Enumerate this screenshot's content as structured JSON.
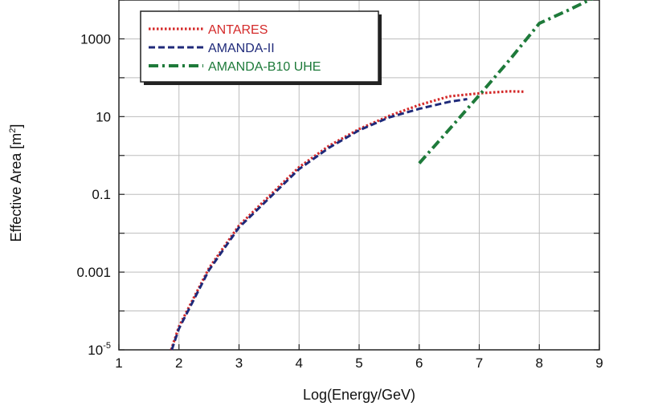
{
  "chart_data": {
    "type": "line",
    "xlabel": "Log(Energy/GeV)",
    "ylabel": "Effective Area [m",
    "ylabel_superscript": "2",
    "ylabel_close": "]",
    "xlim": [
      1,
      9
    ],
    "ylim_log10": [
      -5,
      4
    ],
    "y_scale": "log",
    "x_ticks": [
      {
        "value": 1,
        "label": "1"
      },
      {
        "value": 2,
        "label": "2"
      },
      {
        "value": 3,
        "label": "3"
      },
      {
        "value": 4,
        "label": "4"
      },
      {
        "value": 5,
        "label": "5"
      },
      {
        "value": 6,
        "label": "6"
      },
      {
        "value": 7,
        "label": "7"
      },
      {
        "value": 8,
        "label": "8"
      },
      {
        "value": 9,
        "label": "9"
      }
    ],
    "y_ticks": [
      {
        "log10": -5,
        "label": "10",
        "sup": "-5"
      },
      {
        "log10": -3,
        "label": "0.001",
        "sup": ""
      },
      {
        "log10": -1,
        "label": "0.1",
        "sup": ""
      },
      {
        "log10": 1,
        "label": "10",
        "sup": ""
      },
      {
        "log10": 3,
        "label": "1000",
        "sup": ""
      }
    ],
    "grid": true,
    "legend_position": "top-left",
    "series": [
      {
        "name": "ANTARES",
        "color": "#d42a2a",
        "dash": "dotted",
        "points": [
          [
            1.87,
            -5.0
          ],
          [
            2.0,
            -4.4
          ],
          [
            2.5,
            -2.9
          ],
          [
            3.0,
            -1.8
          ],
          [
            3.5,
            -1.05
          ],
          [
            4.0,
            -0.3
          ],
          [
            4.5,
            0.25
          ],
          [
            5.0,
            0.68
          ],
          [
            5.5,
            1.02
          ],
          [
            6.0,
            1.3
          ],
          [
            6.5,
            1.52
          ],
          [
            7.0,
            1.6
          ],
          [
            7.5,
            1.65
          ],
          [
            7.75,
            1.64
          ]
        ]
      },
      {
        "name": "AMANDA-II",
        "color": "#1f2a7a",
        "dash": "dashed",
        "points": [
          [
            1.88,
            -5.0
          ],
          [
            2.0,
            -4.45
          ],
          [
            2.5,
            -2.95
          ],
          [
            3.0,
            -1.85
          ],
          [
            3.5,
            -1.1
          ],
          [
            4.0,
            -0.35
          ],
          [
            4.5,
            0.2
          ],
          [
            5.0,
            0.65
          ],
          [
            5.5,
            0.98
          ],
          [
            6.0,
            1.2
          ],
          [
            6.5,
            1.38
          ],
          [
            6.8,
            1.45
          ]
        ]
      },
      {
        "name": "AMANDA-B10  UHE",
        "color": "#1e7a3a",
        "dash": "dashdot",
        "points": [
          [
            6.0,
            -0.2
          ],
          [
            6.5,
            0.67
          ],
          [
            7.0,
            1.55
          ],
          [
            7.5,
            2.45
          ],
          [
            8.0,
            3.4
          ],
          [
            8.5,
            3.75
          ],
          [
            8.9,
            4.05
          ]
        ]
      }
    ]
  }
}
